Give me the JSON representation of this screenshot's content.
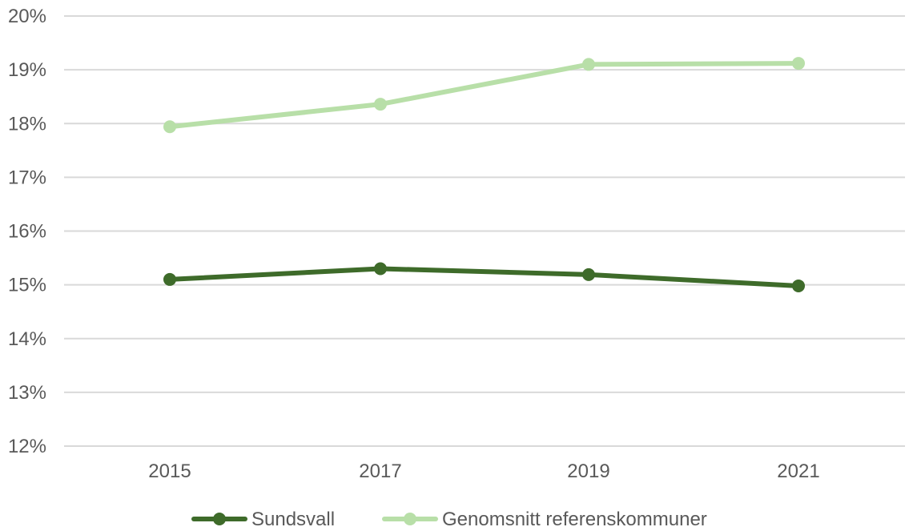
{
  "chart_data": {
    "type": "line",
    "title": "",
    "xlabel": "",
    "ylabel": "",
    "categories": [
      "2015",
      "2017",
      "2019",
      "2021"
    ],
    "series": [
      {
        "name": "Sundsvall",
        "values": [
          15.1,
          15.3,
          15.19,
          14.98
        ],
        "color": "#3e6b2a"
      },
      {
        "name": "Genomsnitt referenskommuner",
        "values": [
          17.94,
          18.36,
          19.1,
          19.12
        ],
        "color": "#b8dfa8"
      }
    ],
    "ylim": [
      12,
      20
    ],
    "yticks": [
      "12%",
      "13%",
      "14%",
      "15%",
      "16%",
      "17%",
      "18%",
      "19%",
      "20%"
    ],
    "grid": "horizontal",
    "legend": "bottom"
  }
}
